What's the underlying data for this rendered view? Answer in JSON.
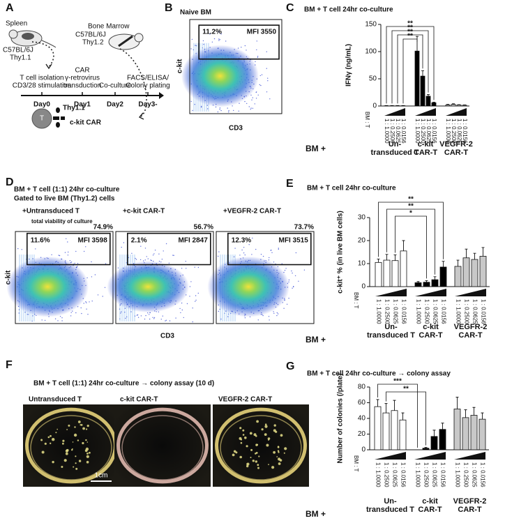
{
  "panel_letters": [
    "A",
    "B",
    "C",
    "D",
    "E",
    "F",
    "G"
  ],
  "schematic": {
    "spleen": "Spleen",
    "donor_strain": [
      "C57BL/6J",
      "Thy1.1"
    ],
    "marrow": "Bone Marrow",
    "recipient_strain": [
      "C57BL/6J",
      "Thy1.2"
    ],
    "steps": [
      [
        "T cell isolation",
        "CD3/28 stimulation"
      ],
      [
        "CAR",
        "γ-retrovirus",
        "transduction"
      ],
      [
        "Co-culture"
      ],
      [
        "FACS/ELISA/",
        "Colony plating"
      ]
    ],
    "days": [
      "Day0",
      "Day1",
      "Day2",
      "Day3-"
    ],
    "cell": "T",
    "marker": "Thy1.1",
    "car": "c-kit CAR"
  },
  "flow_b": {
    "title": "Naive BM",
    "gate_percent": "11.2%",
    "mfi": "MFI 3550",
    "y_label": "c-kit",
    "x_label": "CD3"
  },
  "flow_d": {
    "title": [
      "BM + T cell (1:1) 24hr co-culture",
      "Gated to live BM (Thy1.2) cells"
    ],
    "viability_label": "total viability of culture",
    "plots": [
      {
        "name": "+Untransduced T",
        "viability": "74.9%",
        "gate_percent": "11.6%",
        "mfi": "MFI 3598"
      },
      {
        "name": "+c-kit CAR-T",
        "viability": "56.7%",
        "gate_percent": "2.1%",
        "mfi": "MFI 2847"
      },
      {
        "name": "+VEGFR-2 CAR-T",
        "viability": "73.7%",
        "gate_percent": "12.3%",
        "mfi": "MFI 3515"
      }
    ],
    "y_label": "c-kit",
    "x_label": "CD3"
  },
  "colony_photos": {
    "title": "BM + T cell (1:1) 24hr co-culture → colony assay (10 d)",
    "plots": [
      {
        "name": "Untransduced T"
      },
      {
        "name": "c-kit CAR-T"
      },
      {
        "name": "VEGFR-2 CAR-T"
      }
    ],
    "scale_bar": "1cm"
  },
  "chart_data": [
    {
      "type": "bar",
      "title": "BM + T cell 24hr co-culture",
      "y_label": "IFNγ (ng/mL)",
      "ratio_label": "BM : T",
      "row_label": "BM +",
      "categories": [
        "1 : 1.0000",
        "1 : 0.2500",
        "1 : 0.0625",
        "1 : 0.0156"
      ],
      "ylim": [
        0,
        150
      ],
      "yticks": [
        0,
        50,
        100,
        150
      ],
      "series": [
        {
          "name": "Un-\ntransduced T",
          "color": "#ffffff",
          "values": [
            0.5,
            0.5,
            0.5,
            0.5
          ],
          "errors": [
            0.3,
            0.3,
            0.3,
            0.3
          ]
        },
        {
          "name": "c-kit\nCAR-T",
          "color": "#000000",
          "values": [
            101,
            55,
            18,
            6
          ],
          "errors": [
            27,
            10,
            3,
            1
          ]
        },
        {
          "name": "VEGFR-2\nCAR-T",
          "color": "#c8c8c8",
          "values": [
            2,
            3,
            2,
            1.5
          ],
          "errors": [
            1,
            1,
            0.5,
            0.5
          ]
        }
      ],
      "annotations": [
        "**",
        "**",
        "**",
        "**"
      ]
    },
    {
      "type": "bar",
      "title": "BM + T cell 24hr co-culture",
      "y_label": "c-kit⁺ % (in live BM cells)",
      "ratio_label": "BM : T",
      "row_label": "BM +",
      "categories": [
        "1 : 1.0000",
        "1 : 0.2500",
        "1 : 0.0625",
        "1 : 0.0156"
      ],
      "ylim": [
        0,
        30
      ],
      "yticks": [
        0,
        10,
        20,
        30
      ],
      "series": [
        {
          "name": "Un-\ntransduced T",
          "color": "#ffffff",
          "values": [
            10.5,
            11.5,
            11.3,
            15.5
          ],
          "errors": [
            1.5,
            2.5,
            2.5,
            4.5
          ]
        },
        {
          "name": "c-kit\nCAR-T",
          "color": "#000000",
          "values": [
            1.7,
            1.9,
            3,
            8.5
          ],
          "errors": [
            0.5,
            0.7,
            1.3,
            2.5
          ]
        },
        {
          "name": "VEGFR-2\nCAR-T",
          "color": "#c8c8c8",
          "values": [
            8.8,
            12.5,
            11.8,
            13.2
          ],
          "errors": [
            2.7,
            3.8,
            2.7,
            3.8
          ]
        }
      ],
      "annotations": [
        "**",
        "**",
        "*"
      ]
    },
    {
      "type": "bar",
      "title": "BM + T cell 24hr co-culture → colony assay",
      "y_label": "Number of colonies (/plate)",
      "ratio_label": "BM : T",
      "row_label": "BM +",
      "categories": [
        "1 : 1.0000",
        "1 : 0.2500",
        "1 : 0.0625",
        "1 : 0.0156"
      ],
      "ylim": [
        0,
        80
      ],
      "yticks": [
        0,
        20,
        40,
        60,
        80
      ],
      "series": [
        {
          "name": "Un-\ntransduced T",
          "color": "#ffffff",
          "values": [
            55,
            47,
            50,
            38
          ],
          "errors": [
            9,
            12,
            13,
            9
          ]
        },
        {
          "name": "c-kit\nCAR-T",
          "color": "#000000",
          "values": [
            0,
            2,
            17,
            26
          ],
          "errors": [
            0,
            1,
            8,
            8
          ]
        },
        {
          "name": "VEGFR-2\nCAR-T",
          "color": "#c8c8c8",
          "values": [
            52,
            41,
            44,
            39
          ],
          "errors": [
            15,
            10,
            10,
            8
          ]
        }
      ],
      "annotations": [
        "***",
        "**"
      ]
    }
  ]
}
